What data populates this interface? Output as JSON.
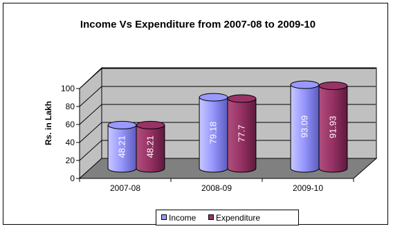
{
  "chart_data": {
    "type": "bar",
    "title": "Income Vs Expenditure from 2007-08 to 2009-10",
    "xlabel": "",
    "ylabel": "Rs. in Lakh",
    "categories": [
      "2007-08",
      "2008-09",
      "2009-10"
    ],
    "ylim": [
      0,
      100
    ],
    "yticks": [
      "0",
      "20",
      "40",
      "60",
      "80",
      "100"
    ],
    "grid": true,
    "legend_position": "bottom",
    "series": [
      {
        "name": "Income",
        "values": [
          48.21,
          79.18,
          93.09
        ],
        "value_labels": [
          "48.21",
          "79.18",
          "93.09"
        ],
        "color": "#9999ff"
      },
      {
        "name": "Expenditure",
        "values": [
          48.21,
          77.7,
          91.93
        ],
        "value_labels": [
          "48.21",
          "77.7",
          "91.93"
        ],
        "color": "#993366"
      }
    ],
    "colors": {
      "wall": "#c0c0c0",
      "floor": "#808080",
      "grid": "#000000"
    }
  }
}
